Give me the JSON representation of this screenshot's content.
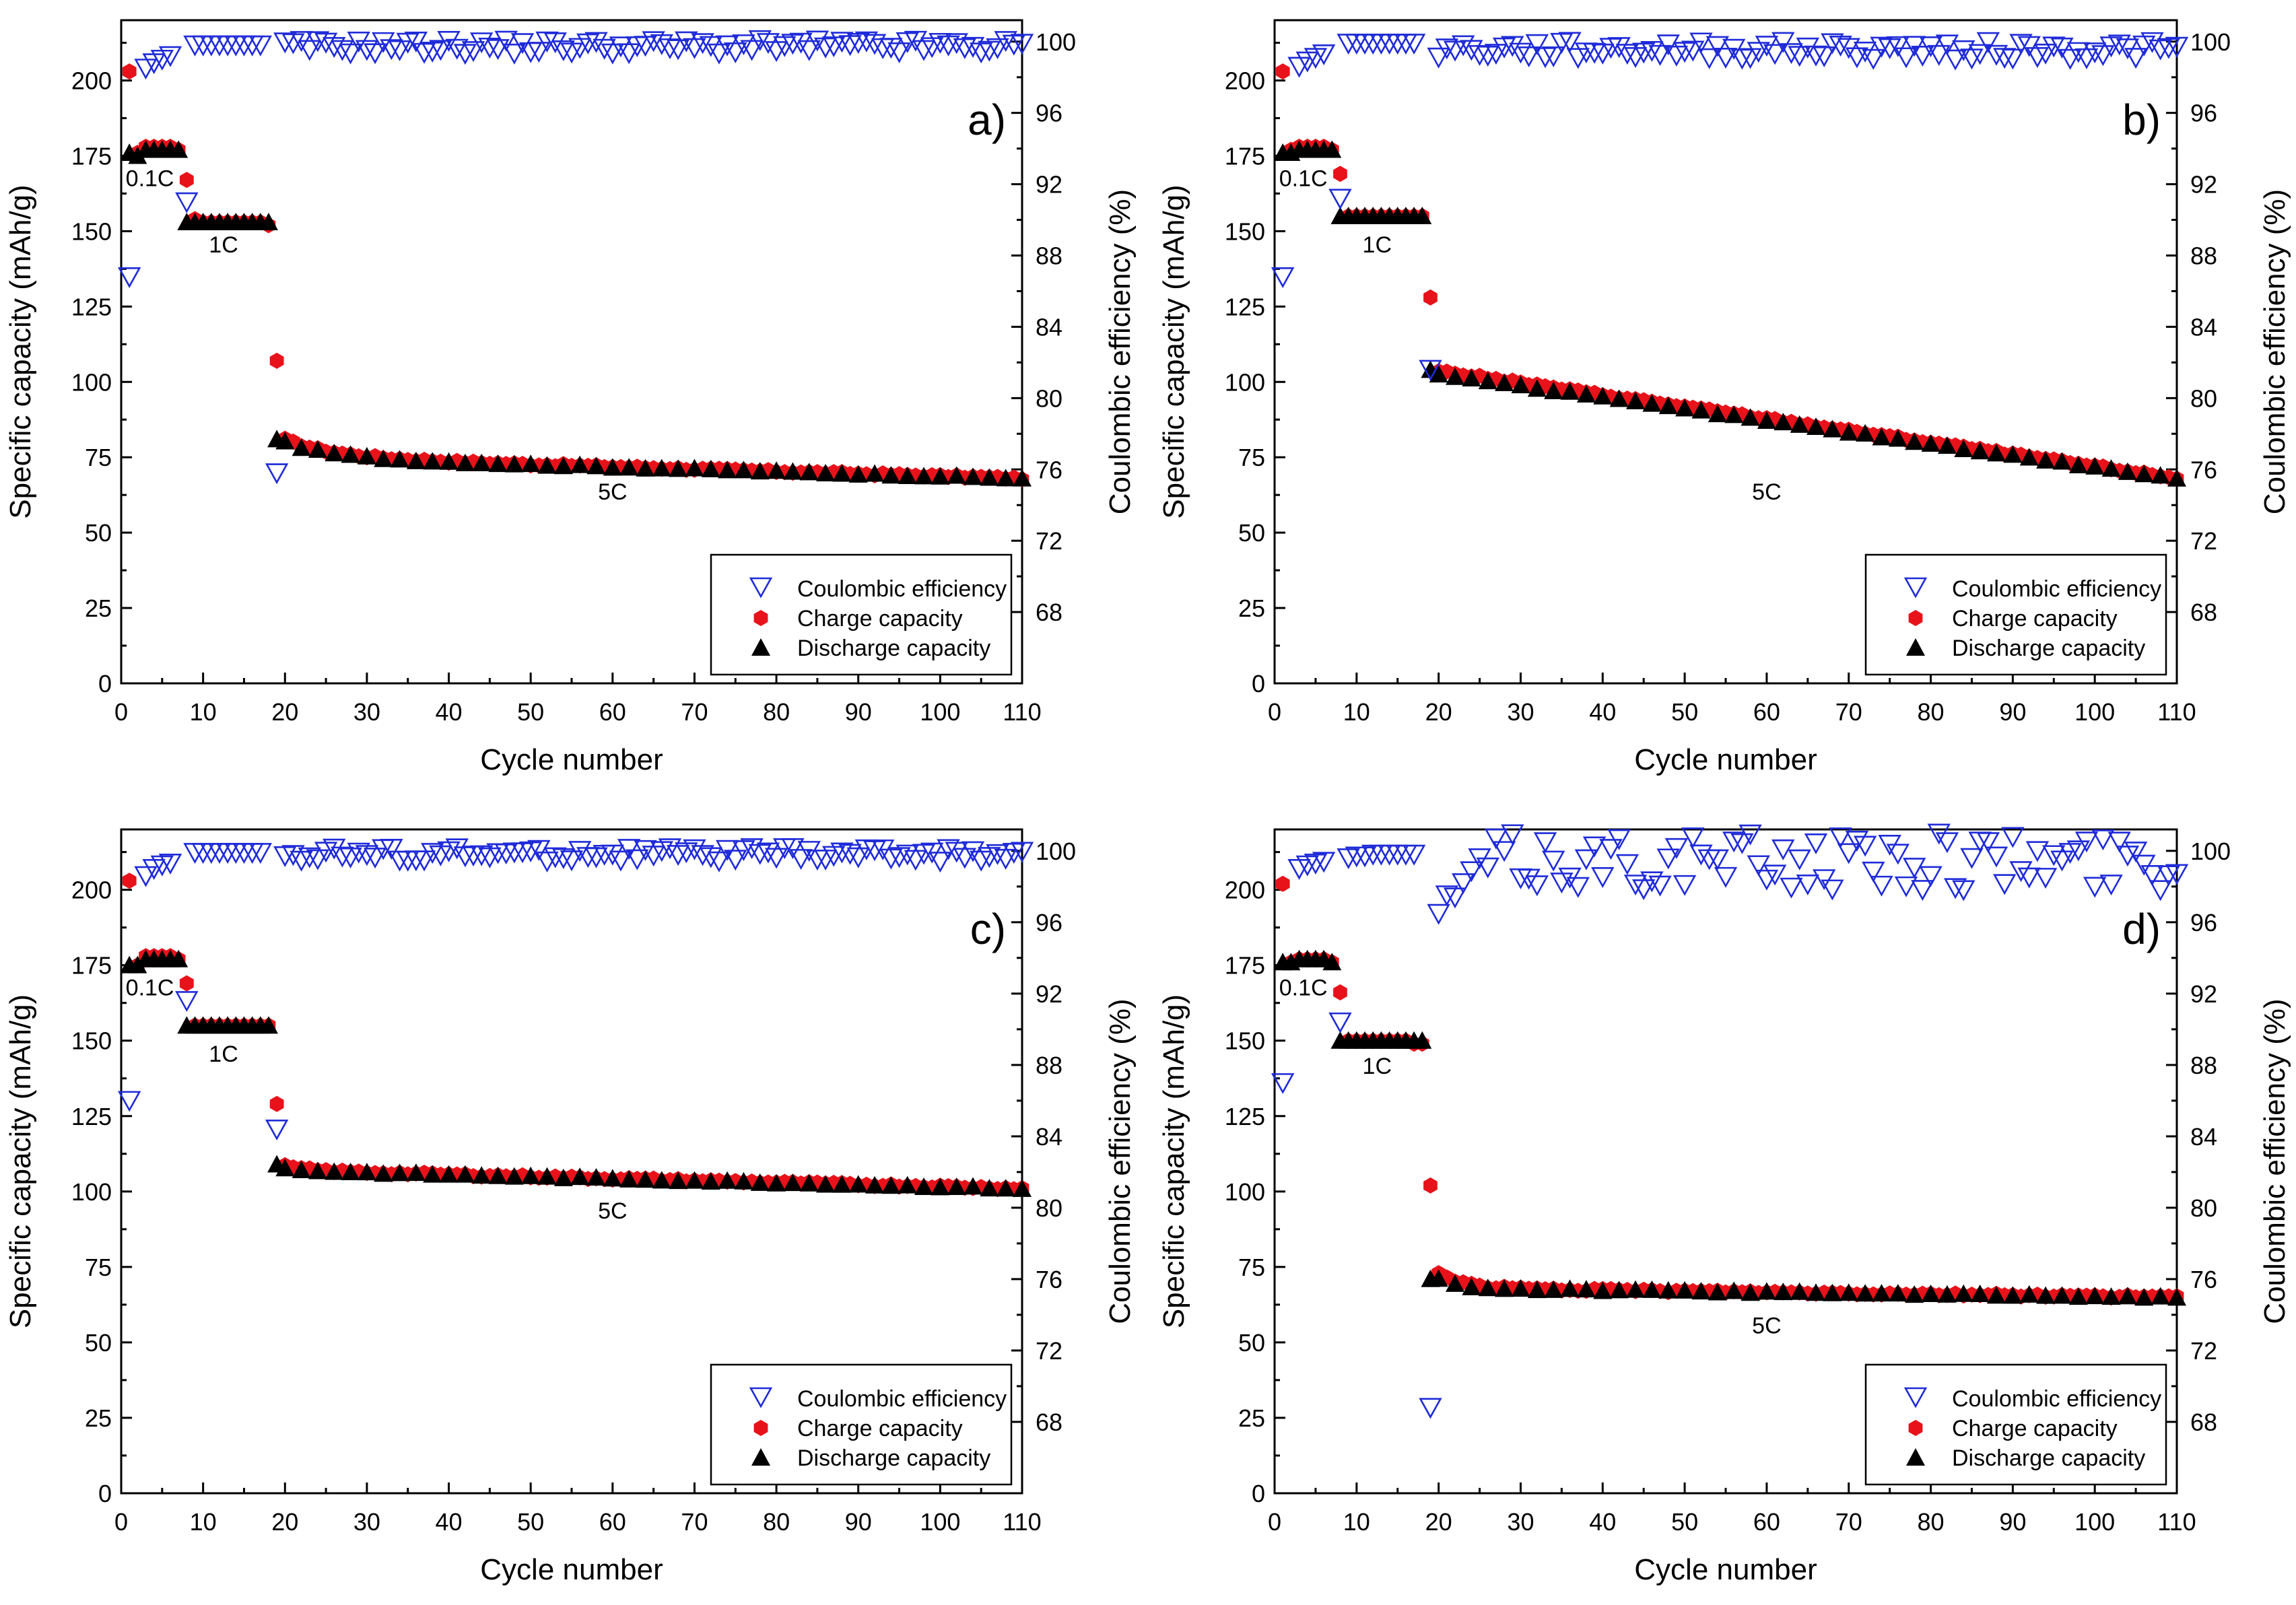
{
  "chart_data": [
    {
      "type": "scatter",
      "panel_label": "a)",
      "xlabel": "Cycle number",
      "ylabel": "Specific capacity (mAh/g)",
      "y2label": "Coulombic efficiency (%)",
      "xlim": [
        0,
        110
      ],
      "ylim": [
        0,
        220
      ],
      "y2lim": [
        64,
        101.2
      ],
      "xticks": [
        0,
        10,
        20,
        30,
        40,
        50,
        60,
        70,
        80,
        90,
        100,
        110
      ],
      "yticks": [
        0,
        25,
        50,
        75,
        100,
        125,
        150,
        175,
        200
      ],
      "y2ticks": [
        68,
        72,
        76,
        80,
        84,
        88,
        92,
        96,
        100
      ],
      "legend": [
        "Coulombic efficiency",
        "Charge capacity",
        "Discharge capacity"
      ],
      "annotations": [
        {
          "text": "0.1C",
          "x": 3.5,
          "y": 165
        },
        {
          "text": "1C",
          "x": 12.5,
          "y": 143
        },
        {
          "text": "5C",
          "x": 60,
          "y": 61
        }
      ],
      "series": [
        {
          "name": "Coulombic efficiency",
          "ce_formation": [
            86.8,
            98.5,
            98.8,
            99.0,
            99.2
          ],
          "ce_1C": [
            91.0,
            99.8,
            99.8,
            99.8,
            99.8,
            99.8,
            99.8,
            99.8,
            99.8,
            99.8
          ],
          "ce_5C": {
            "start_cycle": 19,
            "first_value": 75.8,
            "plateau": 99.7,
            "spread": 0.4,
            "end_cycle": 110
          },
          "values": []
        },
        {
          "name": "Charge capacity",
          "values": [
            [
              1,
              203
            ],
            [
              2,
              176
            ],
            [
              3,
              178
            ],
            [
              4,
              178
            ],
            [
              5,
              178
            ],
            [
              6,
              178
            ],
            [
              7,
              177
            ],
            [
              8,
              167
            ],
            [
              9,
              154
            ],
            [
              10,
              153
            ],
            [
              11,
              153
            ],
            [
              12,
              153
            ],
            [
              13,
              153
            ],
            [
              14,
              153
            ],
            [
              15,
              153
            ],
            [
              16,
              153
            ],
            [
              17,
              153
            ],
            [
              18,
              152
            ],
            [
              19,
              107
            ]
          ],
          "c5_curve": {
            "start": 82,
            "plateau": 75,
            "end": 68,
            "knee": 6
          }
        },
        {
          "name": "Discharge capacity",
          "values": [
            [
              1,
              176
            ],
            [
              2,
              175
            ],
            [
              3,
              177
            ],
            [
              4,
              177
            ],
            [
              5,
              177
            ],
            [
              6,
              177
            ],
            [
              7,
              177
            ],
            [
              8,
              153
            ],
            [
              9,
              153
            ],
            [
              10,
              153
            ],
            [
              11,
              153
            ],
            [
              12,
              153
            ],
            [
              13,
              153
            ],
            [
              14,
              153
            ],
            [
              15,
              153
            ],
            [
              16,
              153
            ],
            [
              17,
              153
            ],
            [
              18,
              153
            ],
            [
              19,
              81
            ]
          ],
          "c5_curve": {
            "start": 81,
            "plateau": 75,
            "end": 68,
            "knee": 6
          }
        }
      ]
    },
    {
      "type": "scatter",
      "panel_label": "b)",
      "xlabel": "Cycle number",
      "ylabel": "Specific capacity (mAh/g)",
      "y2label": "Coulombic efficiency (%)",
      "xlim": [
        0,
        110
      ],
      "ylim": [
        0,
        220
      ],
      "y2lim": [
        64,
        101.2
      ],
      "xticks": [
        0,
        10,
        20,
        30,
        40,
        50,
        60,
        70,
        80,
        90,
        100,
        110
      ],
      "yticks": [
        0,
        25,
        50,
        75,
        100,
        125,
        150,
        175,
        200
      ],
      "y2ticks": [
        68,
        72,
        76,
        80,
        84,
        88,
        92,
        96,
        100
      ],
      "legend": [
        "Coulombic efficiency",
        "Charge capacity",
        "Discharge capacity"
      ],
      "annotations": [
        {
          "text": "0.1C",
          "x": 3.5,
          "y": 165
        },
        {
          "text": "1C",
          "x": 12.5,
          "y": 143
        },
        {
          "text": "5C",
          "x": 60,
          "y": 61
        }
      ],
      "series": [
        {
          "name": "Coulombic efficiency",
          "ce_formation": [
            86.8,
            98.6,
            98.9,
            99.1,
            99.3
          ],
          "ce_1C": [
            91.2,
            99.9,
            99.9,
            99.9,
            99.9,
            99.9,
            99.9,
            99.9,
            99.9,
            99.9
          ],
          "ce_5C": {
            "start_cycle": 19,
            "first_value": 81.6,
            "plateau": 99.5,
            "spread": 0.5,
            "end_cycle": 110
          },
          "values": []
        },
        {
          "name": "Charge capacity",
          "values": [
            [
              1,
              203
            ],
            [
              2,
              177
            ],
            [
              3,
              178
            ],
            [
              4,
              178
            ],
            [
              5,
              178
            ],
            [
              6,
              178
            ],
            [
              7,
              177
            ],
            [
              8,
              169
            ],
            [
              9,
              155
            ],
            [
              10,
              155
            ],
            [
              11,
              155
            ],
            [
              12,
              155
            ],
            [
              13,
              155
            ],
            [
              14,
              155
            ],
            [
              15,
              155
            ],
            [
              16,
              155
            ],
            [
              17,
              155
            ],
            [
              18,
              155
            ],
            [
              19,
              128
            ]
          ],
          "c5_curve": {
            "start": 104,
            "plateau": 104,
            "end": 68,
            "knee": 3
          }
        },
        {
          "name": "Discharge capacity",
          "values": [
            [
              1,
              176
            ],
            [
              2,
              176
            ],
            [
              3,
              177
            ],
            [
              4,
              177
            ],
            [
              5,
              177
            ],
            [
              6,
              177
            ],
            [
              7,
              177
            ],
            [
              8,
              155
            ],
            [
              9,
              155
            ],
            [
              10,
              155
            ],
            [
              11,
              155
            ],
            [
              12,
              155
            ],
            [
              13,
              155
            ],
            [
              14,
              155
            ],
            [
              15,
              155
            ],
            [
              16,
              155
            ],
            [
              17,
              155
            ],
            [
              18,
              155
            ],
            [
              19,
              104
            ]
          ],
          "c5_curve": {
            "start": 103,
            "plateau": 103,
            "end": 68,
            "knee": 3
          }
        }
      ]
    },
    {
      "type": "scatter",
      "panel_label": "c)",
      "xlabel": "Cycle number",
      "ylabel": "Specific capacity (mAh/g)",
      "y2label": "Coulombic efficiency (%)",
      "xlim": [
        0,
        110
      ],
      "ylim": [
        0,
        220
      ],
      "y2lim": [
        64,
        101.2
      ],
      "xticks": [
        0,
        10,
        20,
        30,
        40,
        50,
        60,
        70,
        80,
        90,
        100,
        110
      ],
      "yticks": [
        0,
        25,
        50,
        75,
        100,
        125,
        150,
        175,
        200
      ],
      "y2ticks": [
        68,
        72,
        76,
        80,
        84,
        88,
        92,
        96,
        100
      ],
      "legend": [
        "Coulombic efficiency",
        "Charge capacity",
        "Discharge capacity"
      ],
      "annotations": [
        {
          "text": "0.1C",
          "x": 3.5,
          "y": 165
        },
        {
          "text": "1C",
          "x": 12.5,
          "y": 143
        },
        {
          "text": "5C",
          "x": 60,
          "y": 91
        }
      ],
      "series": [
        {
          "name": "Coulombic efficiency",
          "ce_formation": [
            86.0,
            98.6,
            99.0,
            99.2,
            99.3
          ],
          "ce_1C": [
            91.6,
            99.9,
            99.9,
            99.9,
            99.9,
            99.9,
            99.9,
            99.9,
            99.9,
            99.9
          ],
          "ce_5C": {
            "start_cycle": 19,
            "first_value": 84.4,
            "plateau": 99.8,
            "spread": 0.4,
            "end_cycle": 110
          },
          "values": []
        },
        {
          "name": "Charge capacity",
          "values": [
            [
              1,
              203
            ],
            [
              2,
              175
            ],
            [
              3,
              178
            ],
            [
              4,
              178
            ],
            [
              5,
              178
            ],
            [
              6,
              178
            ],
            [
              7,
              177
            ],
            [
              8,
              169
            ],
            [
              9,
              155
            ],
            [
              10,
              155
            ],
            [
              11,
              155
            ],
            [
              12,
              155
            ],
            [
              13,
              155
            ],
            [
              14,
              155
            ],
            [
              15,
              155
            ],
            [
              16,
              155
            ],
            [
              17,
              155
            ],
            [
              18,
              155
            ],
            [
              19,
              129
            ]
          ],
          "c5_curve": {
            "start": 109,
            "plateau": 107,
            "end": 101,
            "knee": 3
          }
        },
        {
          "name": "Discharge capacity",
          "values": [
            [
              1,
              175
            ],
            [
              2,
              175
            ],
            [
              3,
              177
            ],
            [
              4,
              177
            ],
            [
              5,
              177
            ],
            [
              6,
              177
            ],
            [
              7,
              177
            ],
            [
              8,
              155
            ],
            [
              9,
              155
            ],
            [
              10,
              155
            ],
            [
              11,
              155
            ],
            [
              12,
              155
            ],
            [
              13,
              155
            ],
            [
              14,
              155
            ],
            [
              15,
              155
            ],
            [
              16,
              155
            ],
            [
              17,
              155
            ],
            [
              18,
              155
            ],
            [
              19,
              109
            ]
          ],
          "c5_curve": {
            "start": 108,
            "plateau": 107,
            "end": 101,
            "knee": 3
          }
        }
      ]
    },
    {
      "type": "scatter",
      "panel_label": "d)",
      "xlabel": "Cycle number",
      "ylabel": "Specific capacity (mAh/g)",
      "y2label": "Coulombic efficiency (%)",
      "xlim": [
        0,
        110
      ],
      "ylim": [
        0,
        220
      ],
      "y2lim": [
        64,
        101.2
      ],
      "xticks": [
        0,
        10,
        20,
        30,
        40,
        50,
        60,
        70,
        80,
        90,
        100,
        110
      ],
      "yticks": [
        0,
        25,
        50,
        75,
        100,
        125,
        150,
        175,
        200
      ],
      "y2ticks": [
        68,
        72,
        76,
        80,
        84,
        88,
        92,
        96,
        100
      ],
      "legend": [
        "Coulombic efficiency",
        "Charge capacity",
        "Discharge capacity"
      ],
      "annotations": [
        {
          "text": "0.1C",
          "x": 3.5,
          "y": 165
        },
        {
          "text": "1C",
          "x": 12.5,
          "y": 139
        },
        {
          "text": "5C",
          "x": 60,
          "y": 53
        }
      ],
      "series": [
        {
          "name": "Coulombic efficiency",
          "ce_formation": [
            87.0,
            99.0,
            99.2,
            99.3,
            99.4
          ],
          "ce_1C": [
            90.4,
            99.6,
            99.7,
            99.7,
            99.8,
            99.8,
            99.8,
            99.8,
            99.8,
            99.8
          ],
          "ce_5C": {
            "start_cycle": 19,
            "first_value": 68.8,
            "plateau": 99.4,
            "spread": 1.6,
            "end_cycle": 110
          },
          "values": []
        },
        {
          "name": "Charge capacity",
          "values": [
            [
              1,
              202
            ],
            [
              2,
              176
            ],
            [
              3,
              177
            ],
            [
              4,
              177
            ],
            [
              5,
              177
            ],
            [
              6,
              177
            ],
            [
              7,
              176
            ],
            [
              8,
              166
            ],
            [
              9,
              150
            ],
            [
              10,
              150
            ],
            [
              11,
              150
            ],
            [
              12,
              150
            ],
            [
              13,
              150
            ],
            [
              14,
              150
            ],
            [
              15,
              150
            ],
            [
              16,
              150
            ],
            [
              17,
              149
            ],
            [
              18,
              149
            ],
            [
              19,
              102
            ]
          ],
          "c5_curve": {
            "start": 75,
            "plateau": 68,
            "end": 65,
            "knee": 3
          }
        },
        {
          "name": "Discharge capacity",
          "values": [
            [
              1,
              176
            ],
            [
              2,
              176
            ],
            [
              3,
              177
            ],
            [
              4,
              177
            ],
            [
              5,
              177
            ],
            [
              6,
              177
            ],
            [
              7,
              176
            ],
            [
              8,
              150
            ],
            [
              9,
              150
            ],
            [
              10,
              150
            ],
            [
              11,
              150
            ],
            [
              12,
              150
            ],
            [
              13,
              150
            ],
            [
              14,
              150
            ],
            [
              15,
              150
            ],
            [
              16,
              150
            ],
            [
              17,
              150
            ],
            [
              18,
              150
            ],
            [
              19,
              71
            ]
          ],
          "c5_curve": {
            "start": 72,
            "plateau": 68,
            "end": 65,
            "knee": 3
          }
        }
      ]
    }
  ],
  "colors": {
    "ce": "#1f2bd9",
    "charge": "#e8121a",
    "discharge": "#000000",
    "axis": "#000000"
  }
}
